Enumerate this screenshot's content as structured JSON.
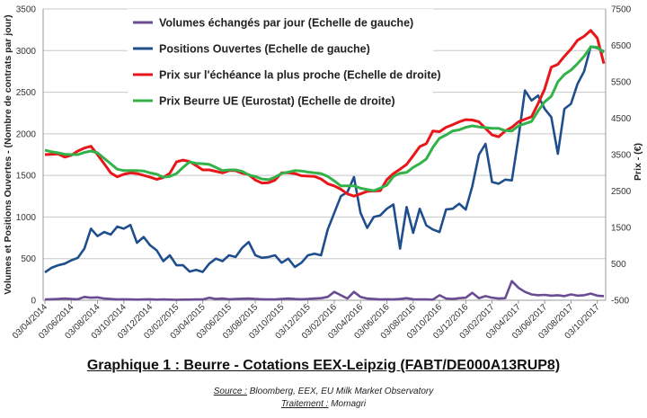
{
  "chart_data": {
    "type": "line",
    "title": "Graphique 1 : Beurre - Cotations EEX-Leipzig (FABT/DE000A13RUP8)",
    "ylabel": "Volumes et Positions Ouvertes - (Nombre de contrats par jour)",
    "y2label": "Prix - (€)",
    "ylim": [
      0,
      3500
    ],
    "y2lim": [
      -500,
      7500
    ],
    "yticks": [
      "0",
      "500",
      "1000",
      "1500",
      "2000",
      "2500",
      "3000",
      "3500"
    ],
    "y2ticks": [
      "-500",
      "500",
      "1500",
      "2500",
      "3500",
      "4500",
      "5500",
      "6500",
      "7500"
    ],
    "xticks": [
      "03/04/2014",
      "03/06/2014",
      "03/08/2014",
      "03/10/2014",
      "03/12/2014",
      "03/02/2015",
      "03/04/2015",
      "03/06/2015",
      "03/08/2015",
      "03/10/2015",
      "03/12/2015",
      "03/02/2016",
      "03/04/2016",
      "03/06/2016",
      "03/08/2016",
      "03/10/2016",
      "03/12/2016",
      "03/02/2017",
      "03/04/2017",
      "03/06/2017",
      "03/08/2017",
      "03/10/2017"
    ],
    "grid": true,
    "legend": "top-center",
    "x": [
      "03/04/2014",
      "18/04/2014",
      "03/05/2014",
      "18/05/2014",
      "03/06/2014",
      "18/06/2014",
      "03/07/2014",
      "18/07/2014",
      "03/08/2014",
      "18/08/2014",
      "03/09/2014",
      "18/09/2014",
      "03/10/2014",
      "18/10/2014",
      "03/11/2014",
      "18/11/2014",
      "03/12/2014",
      "18/12/2014",
      "03/01/2015",
      "18/01/2015",
      "03/02/2015",
      "18/02/2015",
      "03/03/2015",
      "18/03/2015",
      "03/04/2015",
      "18/04/2015",
      "03/05/2015",
      "18/05/2015",
      "03/06/2015",
      "18/06/2015",
      "03/07/2015",
      "18/07/2015",
      "03/08/2015",
      "18/08/2015",
      "03/09/2015",
      "18/09/2015",
      "03/10/2015",
      "18/10/2015",
      "03/11/2015",
      "18/11/2015",
      "03/12/2015",
      "18/12/2015",
      "03/01/2016",
      "18/01/2016",
      "03/02/2016",
      "18/02/2016",
      "03/03/2016",
      "18/03/2016",
      "03/04/2016",
      "18/04/2016",
      "03/05/2016",
      "18/05/2016",
      "03/06/2016",
      "18/06/2016",
      "03/07/2016",
      "18/07/2016",
      "03/08/2016",
      "18/08/2016",
      "03/09/2016",
      "18/09/2016",
      "03/10/2016",
      "18/10/2016",
      "03/11/2016",
      "18/11/2016",
      "03/12/2016",
      "18/12/2016",
      "03/01/2017",
      "18/01/2017",
      "03/02/2017",
      "18/02/2017",
      "03/03/2017",
      "18/03/2017",
      "03/04/2017",
      "18/04/2017",
      "03/05/2017",
      "18/05/2017",
      "03/06/2017",
      "18/06/2017",
      "03/07/2017",
      "18/07/2017",
      "03/08/2017",
      "18/08/2017",
      "03/09/2017",
      "18/09/2017",
      "03/10/2017",
      "18/10/2017"
    ],
    "series": [
      {
        "name": "Volumes échangés par jour (Echelle de gauche)",
        "axis": "left",
        "color": "#6a4c93",
        "values": [
          10,
          12,
          15,
          20,
          15,
          12,
          40,
          30,
          35,
          20,
          15,
          10,
          12,
          10,
          8,
          10,
          12,
          8,
          10,
          8,
          5,
          8,
          8,
          10,
          10,
          30,
          15,
          20,
          12,
          15,
          18,
          20,
          15,
          12,
          10,
          10,
          15,
          20,
          15,
          12,
          15,
          20,
          25,
          40,
          100,
          60,
          20,
          100,
          40,
          20,
          15,
          10,
          12,
          10,
          15,
          25,
          12,
          10,
          10,
          8,
          60,
          20,
          15,
          25,
          30,
          90,
          25,
          50,
          30,
          20,
          25,
          230,
          150,
          100,
          70,
          60,
          65,
          55,
          60,
          50,
          70,
          55,
          60,
          80,
          55,
          50
        ]
      },
      {
        "name": "Positions Ouvertes (Echelle de gauche)",
        "axis": "left",
        "color": "#1f4e8c",
        "values": [
          335,
          390,
          420,
          440,
          480,
          510,
          620,
          860,
          770,
          820,
          790,
          885,
          860,
          905,
          690,
          760,
          660,
          600,
          470,
          540,
          420,
          420,
          345,
          365,
          340,
          440,
          500,
          470,
          540,
          520,
          630,
          700,
          540,
          510,
          520,
          540,
          450,
          500,
          400,
          450,
          540,
          560,
          540,
          850,
          1050,
          1250,
          1300,
          1480,
          1050,
          870,
          1000,
          1020,
          1100,
          1150,
          620,
          1120,
          810,
          1100,
          900,
          850,
          820,
          1090,
          1100,
          1160,
          1090,
          1370,
          1750,
          1880,
          1420,
          1400,
          1450,
          1440,
          1950,
          2520,
          2400,
          2460,
          2300,
          2200,
          1760,
          2300,
          2360,
          2600,
          2750,
          3050,
          3030,
          2990
        ]
      },
      {
        "name": "Prix sur l'échéance la plus proche (Echelle de droite)",
        "axis": "right",
        "color": "#e8161b",
        "values": [
          3500,
          3510,
          3520,
          3430,
          3480,
          3600,
          3680,
          3730,
          3500,
          3250,
          3000,
          2890,
          2960,
          3000,
          2980,
          2930,
          2880,
          2820,
          2870,
          2990,
          3300,
          3350,
          3310,
          3200,
          3080,
          3080,
          3040,
          3000,
          3060,
          3060,
          2990,
          2950,
          2800,
          2720,
          2730,
          2800,
          3000,
          3000,
          2980,
          2920,
          2910,
          2900,
          2830,
          2700,
          2640,
          2550,
          2420,
          2360,
          2420,
          2490,
          2500,
          2510,
          2810,
          2980,
          3100,
          3230,
          3470,
          3720,
          3800,
          4150,
          4130,
          4250,
          4320,
          4400,
          4460,
          4450,
          4400,
          4220,
          4040,
          3990,
          4150,
          4250,
          4400,
          4470,
          4540,
          4900,
          5300,
          5900,
          5980,
          6200,
          6400,
          6640,
          6750,
          6910,
          6700,
          6000
        ]
      },
      {
        "name": "Prix Beurre UE (Eurostat) (Echelle de droite)",
        "axis": "right",
        "color": "#33b24a",
        "values": [
          3620,
          3580,
          3550,
          3510,
          3500,
          3500,
          3560,
          3600,
          3550,
          3400,
          3250,
          3100,
          3060,
          3060,
          3060,
          3050,
          3000,
          2960,
          2880,
          2900,
          2980,
          3150,
          3300,
          3260,
          3250,
          3230,
          3150,
          3060,
          3080,
          3080,
          3040,
          2940,
          2900,
          2830,
          2810,
          2880,
          2980,
          3020,
          3060,
          3050,
          3020,
          3000,
          2980,
          2900,
          2780,
          2640,
          2640,
          2640,
          2580,
          2540,
          2510,
          2580,
          2660,
          2900,
          2990,
          3010,
          3150,
          3250,
          3380,
          3700,
          3950,
          4040,
          4150,
          4180,
          4250,
          4290,
          4260,
          4240,
          4220,
          4220,
          4160,
          4150,
          4290,
          4350,
          4410,
          4700,
          4950,
          5100,
          5500,
          5700,
          5820,
          6000,
          6200,
          6460,
          6450,
          6300
        ]
      }
    ]
  },
  "caption": {
    "source_label": "Source :",
    "source_text": " Bloomberg, EEX, EU Milk Market Observatory",
    "treatment_label": "Traitement :",
    "treatment_text": " Momagri"
  }
}
